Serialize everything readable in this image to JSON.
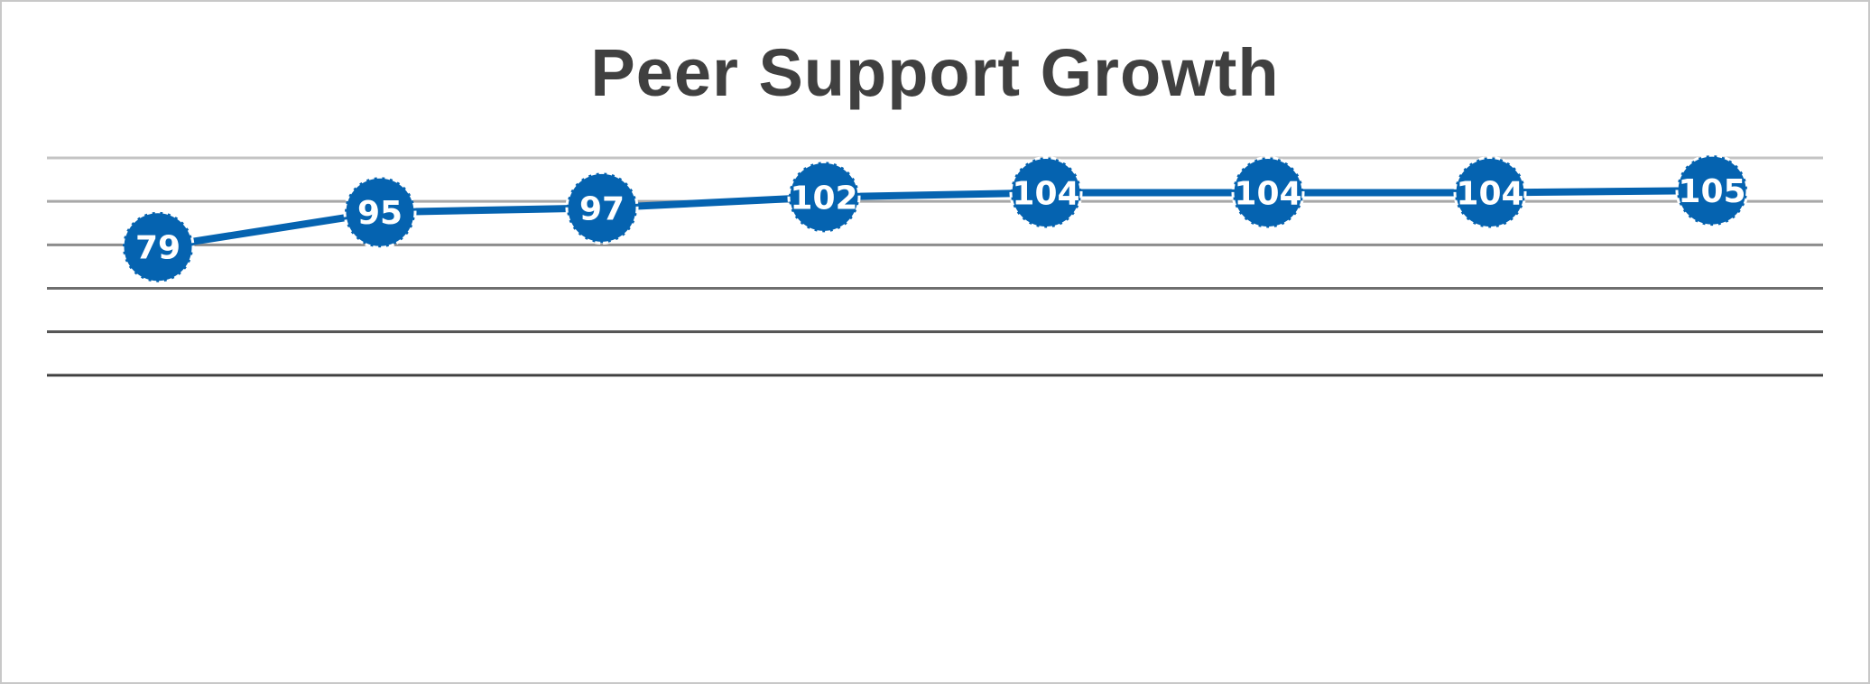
{
  "chart_data": {
    "type": "line",
    "title": "Peer Support Growth",
    "categories": [
      "",
      "",
      "",
      "",
      "",
      "",
      "",
      ""
    ],
    "series": [
      {
        "values": [
          79,
          95,
          97,
          102,
          104,
          104,
          104,
          105
        ],
        "data_labels": [
          "79",
          "95",
          "97",
          "102",
          "104",
          "104",
          "104",
          "105"
        ]
      }
    ],
    "ylim": [
      0,
      120
    ],
    "gridline_values": [
      20,
      40,
      60,
      80,
      100,
      120
    ],
    "grid": true,
    "colors": {
      "series_line": "#0563b0",
      "marker_fill": "#0563b0",
      "marker_outline": "#ffffff",
      "label_text": "#ffffff",
      "title_text": "#404040"
    }
  }
}
